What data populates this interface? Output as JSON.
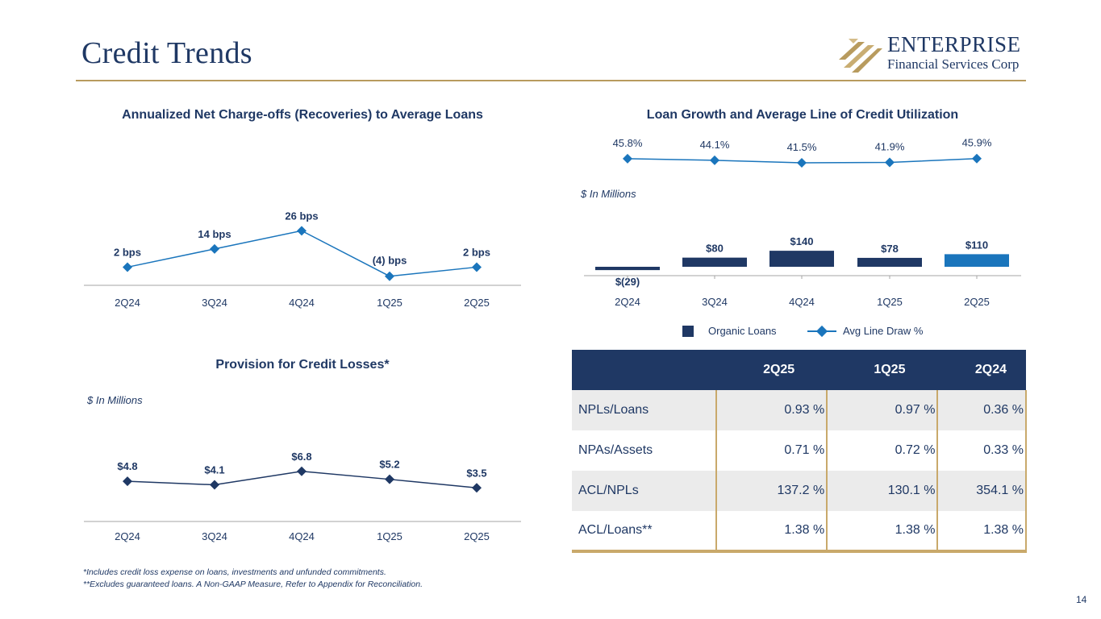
{
  "header": {
    "title": "Credit Trends",
    "logo_name": "ENTERPRISE",
    "logo_sub": "Financial Services Corp"
  },
  "colors": {
    "navy": "#1f3864",
    "blue": "#1a75bc",
    "gold": "#b89b5e"
  },
  "chart_data": [
    {
      "id": "ncos",
      "type": "line",
      "title": "Annualized Net Charge-offs (Recoveries) to Average Loans",
      "categories": [
        "2Q24",
        "3Q24",
        "4Q24",
        "1Q25",
        "2Q25"
      ],
      "values": [
        2,
        14,
        26,
        -4,
        2
      ],
      "labels": [
        "2 bps",
        "14 bps",
        "26 bps",
        "(4) bps",
        "2 bps"
      ],
      "units": "bps",
      "ylim": [
        -10,
        40
      ]
    },
    {
      "id": "loan-growth",
      "type": "bar+line",
      "title": "Loan Growth and Average Line of Credit Utilization",
      "units_note": "$ In Millions",
      "categories": [
        "2Q24",
        "3Q24",
        "4Q24",
        "1Q25",
        "2Q25"
      ],
      "series": [
        {
          "name": "Organic Loans",
          "type": "bar",
          "values": [
            -29,
            80,
            140,
            78,
            110
          ],
          "labels": [
            "$(29)",
            "$80",
            "$140",
            "$78",
            "$110"
          ]
        },
        {
          "name": "Avg Line Draw %",
          "type": "line",
          "values": [
            45.8,
            44.1,
            41.5,
            41.9,
            45.9
          ],
          "labels": [
            "45.8%",
            "44.1%",
            "41.5%",
            "41.9%",
            "45.9%"
          ]
        }
      ]
    },
    {
      "id": "provision",
      "type": "line",
      "title": "Provision for Credit Losses*",
      "units_note": "$ In Millions",
      "categories": [
        "2Q24",
        "3Q24",
        "4Q24",
        "1Q25",
        "2Q25"
      ],
      "values": [
        4.8,
        4.1,
        6.8,
        5.2,
        3.5
      ],
      "labels": [
        "$4.8",
        "$4.1",
        "$6.8",
        "$5.2",
        "$3.5"
      ],
      "ylim": [
        0,
        14
      ]
    }
  ],
  "metrics_table": {
    "columns": [
      "2Q25",
      "1Q25",
      "2Q24"
    ],
    "rows": [
      {
        "label": "NPLs/Loans",
        "values": [
          "0.93 %",
          "0.97 %",
          "0.36 %"
        ]
      },
      {
        "label": "NPAs/Assets",
        "values": [
          "0.71 %",
          "0.72 %",
          "0.33 %"
        ]
      },
      {
        "label": "ACL/NPLs",
        "values": [
          "137.2 %",
          "130.1 %",
          "354.1 %"
        ]
      },
      {
        "label": "ACL/Loans**",
        "values": [
          "1.38 %",
          "1.38 %",
          "1.38 %"
        ]
      }
    ]
  },
  "footnotes": {
    "line1": "*Includes credit loss expense on loans, investments and unfunded commitments.",
    "line2": "**Excludes guaranteed loans. A Non-GAAP Measure, Refer to Appendix for Reconciliation."
  },
  "page_number": "14"
}
